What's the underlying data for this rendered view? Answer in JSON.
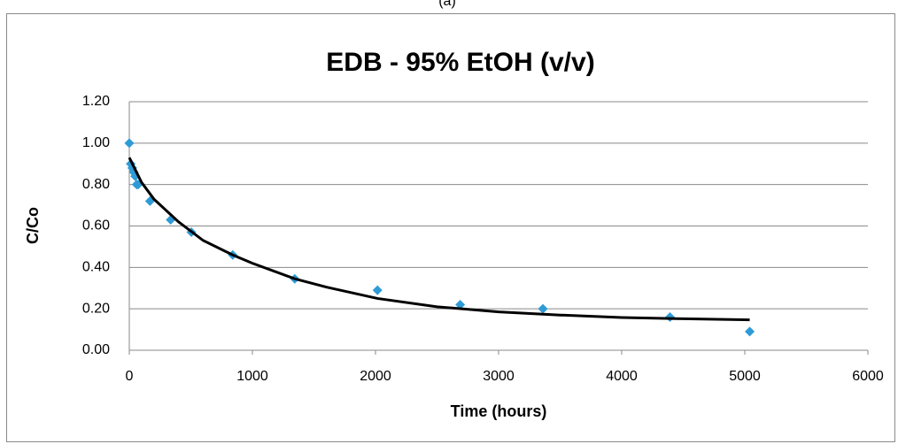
{
  "caption": "(a)",
  "chart_data": {
    "type": "scatter",
    "title": "EDB - 95% EtOH (v/v)",
    "x_label": "Time (hours)",
    "y_label": "C/Co",
    "xlim": [
      0,
      6000
    ],
    "xticks": [
      0,
      1000,
      2000,
      3000,
      4000,
      5000,
      6000
    ],
    "ylim": [
      0,
      1.2
    ],
    "yticks": [
      {
        "value": 0,
        "label": "0.00"
      },
      {
        "value": 0.2,
        "label": "0.20"
      },
      {
        "value": 0.4,
        "label": "0.40"
      },
      {
        "value": 0.6,
        "label": "0.60"
      },
      {
        "value": 0.8,
        "label": "0.80"
      },
      {
        "value": 1.0,
        "label": "1.00"
      },
      {
        "value": 1.2,
        "label": "1.20"
      }
    ],
    "grid": true,
    "series": [
      {
        "color": "#2e9bd6",
        "mode": "markers",
        "x": [
          0,
          12,
          24,
          36,
          48,
          60,
          72,
          168,
          336,
          504,
          840,
          1344,
          2016,
          2688,
          3360,
          4392,
          5040
        ],
        "values": [
          1.0,
          0.9,
          0.88,
          0.86,
          0.84,
          0.8,
          0.8,
          0.72,
          0.63,
          0.57,
          0.46,
          0.345,
          0.29,
          0.22,
          0.2,
          0.16,
          0.09
        ]
      },
      {
        "color": "#000000",
        "mode": "line",
        "x": [
          0,
          100,
          200,
          400,
          600,
          840,
          1000,
          1344,
          1600,
          2016,
          2500,
          3000,
          3500,
          4000,
          4500,
          5040
        ],
        "values": [
          0.93,
          0.81,
          0.73,
          0.62,
          0.53,
          0.46,
          0.42,
          0.345,
          0.305,
          0.25,
          0.21,
          0.185,
          0.17,
          0.158,
          0.152,
          0.147
        ]
      }
    ]
  }
}
